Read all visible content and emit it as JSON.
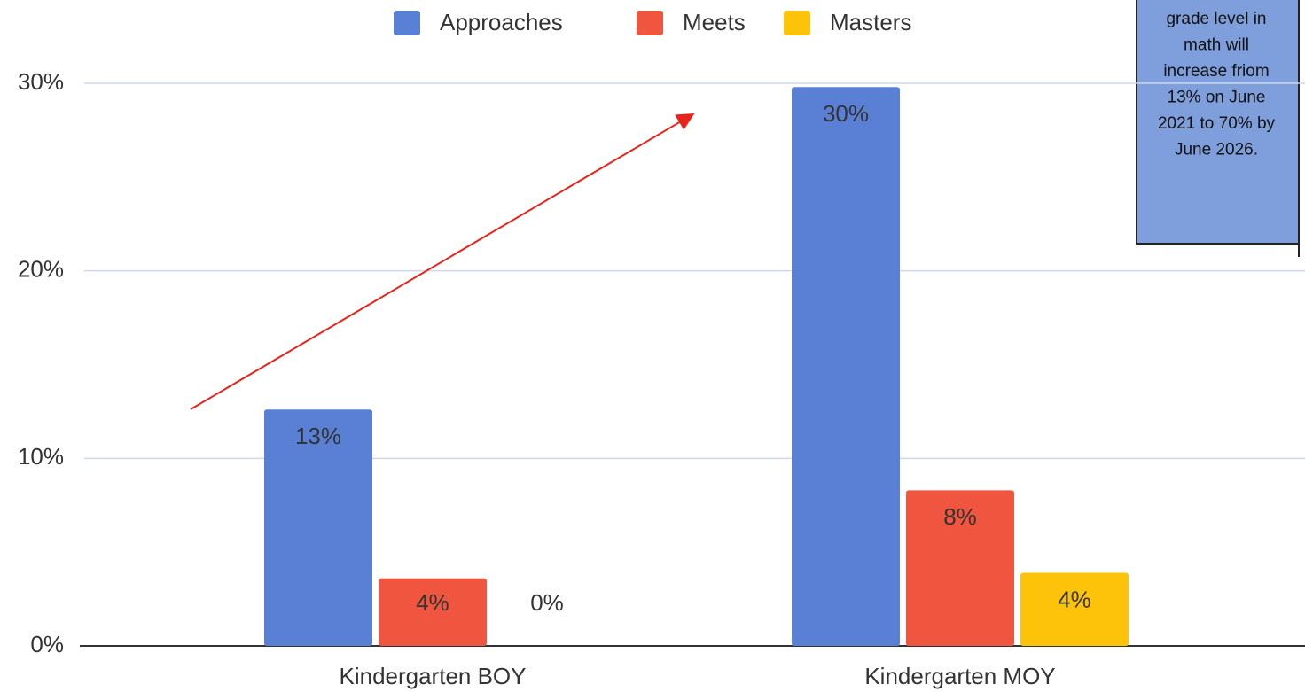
{
  "chart_data": {
    "type": "bar",
    "categories": [
      "Kindergarten BOY",
      "Kindergarten MOY"
    ],
    "series": [
      {
        "name": "Approaches",
        "color": "#5a80d6",
        "values": [
          12.6,
          29.8
        ],
        "value_labels": [
          "13%",
          "30%"
        ]
      },
      {
        "name": "Meets",
        "color": "#f0553f",
        "values": [
          3.6,
          8.3
        ],
        "value_labels": [
          "4%",
          "8%"
        ]
      },
      {
        "name": "Masters",
        "color": "#fcc30a",
        "values": [
          0,
          3.9
        ],
        "value_labels": [
          "0%",
          "4%"
        ]
      }
    ],
    "ylim": [
      0,
      30
    ],
    "yticks": [
      {
        "value": 0,
        "label": "0%"
      },
      {
        "value": 10,
        "label": "10%"
      },
      {
        "value": 20,
        "label": "20%"
      },
      {
        "value": 30,
        "label": "30%"
      }
    ],
    "grid": true,
    "legend": "top",
    "annotation": [
      "grade level in",
      "math will",
      "increase friom",
      "13% on June",
      "2021 to 70% by",
      "June 2026."
    ]
  }
}
